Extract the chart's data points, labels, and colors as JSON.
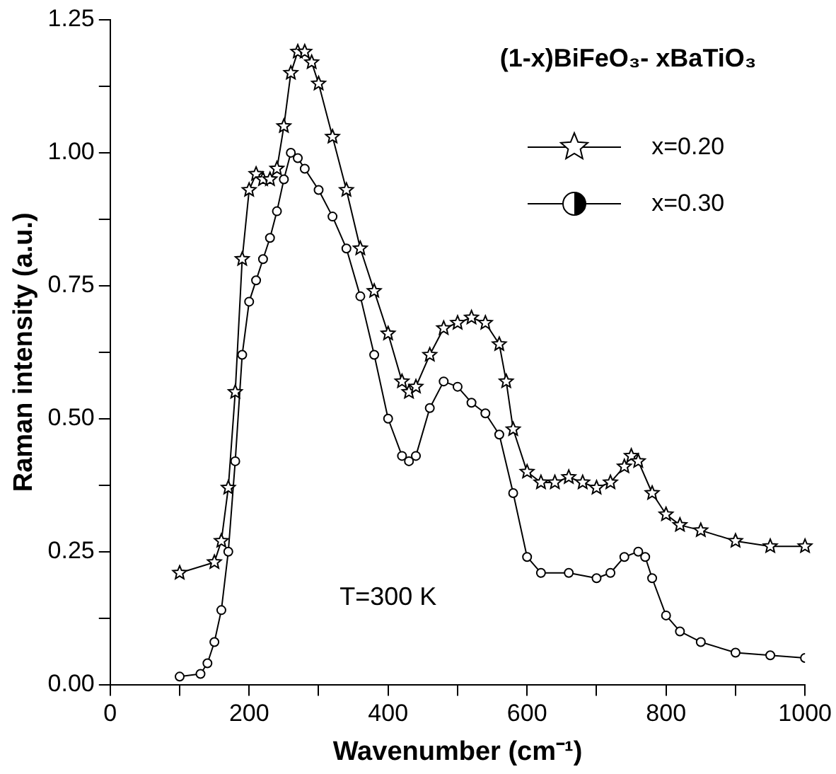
{
  "chart_data": {
    "type": "line",
    "xlabel": "Wavenumber (cm⁻¹)",
    "ylabel": "Raman intensity (a.u.)",
    "annotations": [
      "(1-x)BiFeO₃- xBaTiO₃",
      "T=300 K"
    ],
    "xlim": [
      0,
      1000
    ],
    "xticks": [
      0,
      {
        "value": 100,
        "label": null
      },
      200,
      {
        "value": 300,
        "label": null
      },
      400,
      {
        "value": 500,
        "label": null
      },
      600,
      {
        "value": 700,
        "label": null
      },
      800,
      {
        "value": 900,
        "label": null
      },
      1000
    ],
    "ylim": [
      0,
      1.25
    ],
    "yticks": [
      {
        "value": 0,
        "label": "0.00"
      },
      {
        "value": 0.125,
        "label": null
      },
      {
        "value": 0.25,
        "label": "0.25"
      },
      {
        "value": 0.375,
        "label": null
      },
      {
        "value": 0.5,
        "label": "0.50"
      },
      {
        "value": 0.625,
        "label": null
      },
      {
        "value": 0.75,
        "label": "0.75"
      },
      {
        "value": 0.875,
        "label": null
      },
      {
        "value": 1,
        "label": "1.00"
      },
      {
        "value": 1.125,
        "label": null
      },
      {
        "value": 1.25,
        "label": "1.25"
      }
    ],
    "grid": false,
    "legend": "top right",
    "line_style": "solid",
    "series": [
      {
        "name": "x=0.20",
        "color": "#000000",
        "marker": "star",
        "x": [
          100,
          150,
          160,
          170,
          180,
          190,
          200,
          210,
          220,
          230,
          240,
          250,
          260,
          270,
          280,
          290,
          300,
          320,
          340,
          360,
          380,
          400,
          420,
          430,
          440,
          460,
          480,
          500,
          520,
          540,
          560,
          570,
          580,
          600,
          620,
          640,
          660,
          680,
          700,
          720,
          740,
          750,
          760,
          780,
          800,
          820,
          850,
          900,
          950,
          1000
        ],
        "values": [
          0.21,
          0.23,
          0.27,
          0.37,
          0.55,
          0.8,
          0.93,
          0.96,
          0.95,
          0.95,
          0.97,
          1.05,
          1.15,
          1.19,
          1.19,
          1.17,
          1.13,
          1.03,
          0.93,
          0.82,
          0.74,
          0.66,
          0.57,
          0.55,
          0.56,
          0.62,
          0.67,
          0.68,
          0.69,
          0.68,
          0.64,
          0.57,
          0.48,
          0.4,
          0.38,
          0.38,
          0.39,
          0.38,
          0.37,
          0.38,
          0.41,
          0.43,
          0.42,
          0.36,
          0.32,
          0.3,
          0.29,
          0.27,
          0.26,
          0.26
        ]
      },
      {
        "name": "x=0.30",
        "color": "#000000",
        "marker": "circle",
        "x": [
          100,
          130,
          140,
          150,
          160,
          170,
          180,
          190,
          200,
          210,
          220,
          230,
          240,
          250,
          260,
          270,
          280,
          300,
          320,
          340,
          360,
          380,
          400,
          420,
          430,
          440,
          460,
          480,
          500,
          520,
          540,
          560,
          580,
          600,
          620,
          660,
          700,
          720,
          740,
          760,
          770,
          780,
          800,
          820,
          850,
          900,
          950,
          1000
        ],
        "values": [
          0.015,
          0.02,
          0.04,
          0.08,
          0.14,
          0.25,
          0.42,
          0.62,
          0.72,
          0.76,
          0.8,
          0.84,
          0.89,
          0.95,
          1.0,
          0.99,
          0.97,
          0.93,
          0.88,
          0.82,
          0.73,
          0.62,
          0.5,
          0.43,
          0.42,
          0.43,
          0.52,
          0.57,
          0.56,
          0.53,
          0.51,
          0.47,
          0.36,
          0.24,
          0.21,
          0.21,
          0.2,
          0.21,
          0.24,
          0.25,
          0.24,
          0.2,
          0.13,
          0.1,
          0.08,
          0.06,
          0.055,
          0.05
        ]
      }
    ]
  }
}
